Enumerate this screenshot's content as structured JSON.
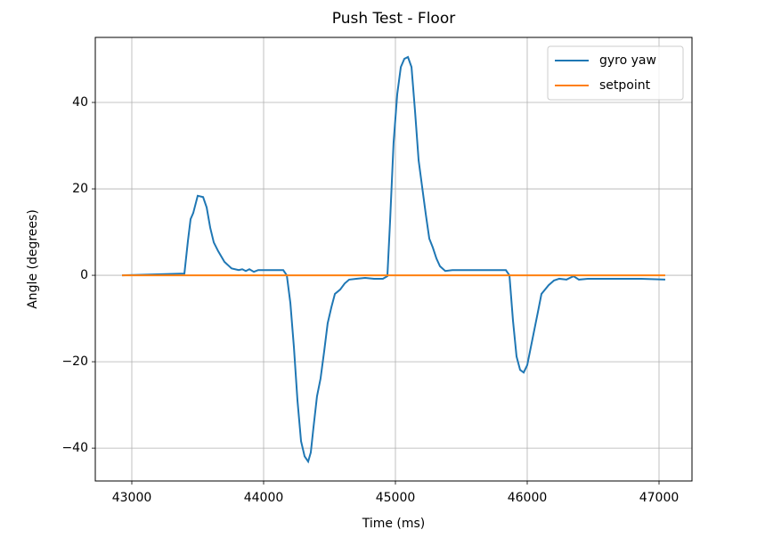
{
  "chart_data": {
    "type": "line",
    "title": "Push Test - Floor",
    "xlabel": "Time (ms)",
    "ylabel": "Angle (degrees)",
    "xlim": [
      42723,
      47250
    ],
    "ylim": [
      -47.6,
      55.05
    ],
    "xticks": [
      43000,
      44000,
      45000,
      46000,
      47000
    ],
    "yticks": [
      {
        "value": -40,
        "label": "−40"
      },
      {
        "value": -20,
        "label": "−20"
      },
      0,
      20,
      40
    ],
    "grid": true,
    "legend": "upper right",
    "series": [
      {
        "name": "gyro yaw",
        "color": "#1f77b4",
        "x": [
          42926,
          43399,
          43426,
          43446,
          43466,
          43500,
          43541,
          43568,
          43595,
          43622,
          43655,
          43703,
          43757,
          43811,
          43838,
          43865,
          43892,
          43926,
          43959,
          44000,
          44149,
          44176,
          44203,
          44230,
          44257,
          44284,
          44311,
          44338,
          44358,
          44378,
          44405,
          44432,
          44459,
          44486,
          44514,
          44541,
          44581,
          44615,
          44649,
          44703,
          44770,
          44838,
          44905,
          44939,
          44959,
          44986,
          45014,
          45041,
          45068,
          45095,
          45122,
          45149,
          45176,
          45203,
          45230,
          45257,
          45284,
          45311,
          45338,
          45378,
          45432,
          45838,
          45865,
          45892,
          45919,
          45946,
          45973,
          46000,
          46027,
          46054,
          46081,
          46108,
          46135,
          46162,
          46203,
          46243,
          46297,
          46324,
          46351,
          46392,
          46459,
          46865,
          47047
        ],
        "values": [
          0,
          0.4,
          8,
          13,
          14.4,
          18.4,
          18.1,
          15.7,
          11,
          7.6,
          5.6,
          3.1,
          1.6,
          1.2,
          1.4,
          1,
          1.4,
          0.8,
          1.2,
          1.2,
          1.2,
          0,
          -6.4,
          -16.7,
          -29,
          -38.4,
          -41.9,
          -43.1,
          -41,
          -35.3,
          -28,
          -23.9,
          -17.7,
          -11.1,
          -7.4,
          -4.3,
          -3.3,
          -1.9,
          -1,
          -0.8,
          -0.6,
          -0.8,
          -0.8,
          -0.2,
          12.2,
          30.7,
          42,
          48.2,
          50.1,
          50.5,
          48.2,
          37.9,
          26.6,
          20.4,
          14.2,
          8.5,
          6.4,
          3.9,
          2.1,
          1,
          1.2,
          1.2,
          0,
          -10.5,
          -18.8,
          -21.9,
          -22.5,
          -20.8,
          -16.7,
          -12.6,
          -8.5,
          -4.3,
          -3.3,
          -2.3,
          -1.2,
          -0.8,
          -1,
          -0.6,
          -0.2,
          -1,
          -0.8,
          -0.8,
          -1
        ]
      },
      {
        "name": "setpoint",
        "color": "#ff7f0e",
        "x": [
          42926,
          47047
        ],
        "values": [
          0,
          0
        ]
      }
    ]
  }
}
